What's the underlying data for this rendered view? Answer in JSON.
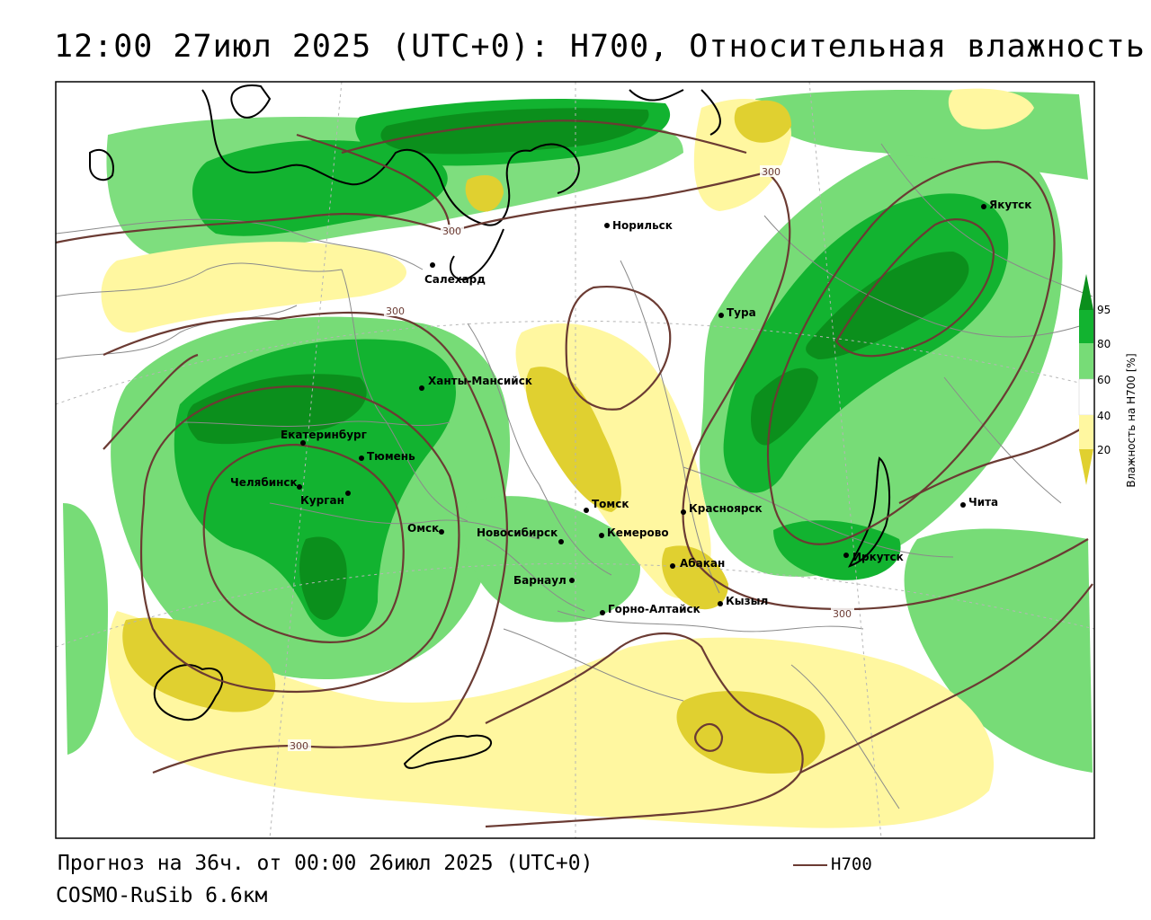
{
  "header": {
    "title": "12:00 27июл 2025 (UTC+0): H700, Относительная влажность"
  },
  "footer": {
    "forecast": "Прогноз на 36ч. от 00:00 26июл 2025 (UTC+0)",
    "model": "COSMO-RuSib 6.6км",
    "legend_line_label": "H700"
  },
  "colorbar": {
    "title": "Влажность на H700 [%]",
    "ticks": [
      "95",
      "80",
      "60",
      "40",
      "20"
    ],
    "colors": {
      "above_95": "#0b8f1c",
      "c80_95": "#12b330",
      "c60_80": "#77dc77",
      "c40_60": "#ffffff",
      "c20_40": "#fff7a0",
      "below_20": "#e0d030"
    }
  },
  "contours": {
    "label": "300",
    "color": "#6b3b33"
  },
  "cities": [
    {
      "name": "Норильск",
      "lon": 88.2,
      "lat": 69.3
    },
    {
      "name": "Якутск",
      "lon": 129.7,
      "lat": 62.0
    },
    {
      "name": "Салехард",
      "lon": 66.6,
      "lat": 66.5
    },
    {
      "name": "Тура",
      "lon": 100.2,
      "lat": 64.3
    },
    {
      "name": "Ханты-Мансийск",
      "lon": 69.0,
      "lat": 61.0
    },
    {
      "name": "Екатеринбург",
      "lon": 60.6,
      "lat": 56.8
    },
    {
      "name": "Тюмень",
      "lon": 65.5,
      "lat": 57.2
    },
    {
      "name": "Челябинск",
      "lon": 61.4,
      "lat": 55.2
    },
    {
      "name": "Курган",
      "lon": 65.3,
      "lat": 55.4
    },
    {
      "name": "Омск",
      "lon": 73.4,
      "lat": 55.0
    },
    {
      "name": "Новосибирск",
      "lon": 82.9,
      "lat": 55.0
    },
    {
      "name": "Томск",
      "lon": 85.0,
      "lat": 56.5
    },
    {
      "name": "Красноярск",
      "lon": 92.9,
      "lat": 56.0
    },
    {
      "name": "Кемерово",
      "lon": 86.1,
      "lat": 55.4
    },
    {
      "name": "Барнаул",
      "lon": 83.8,
      "lat": 53.3
    },
    {
      "name": "Абакан",
      "lon": 91.4,
      "lat": 53.7
    },
    {
      "name": "Иркутск",
      "lon": 104.3,
      "lat": 52.3
    },
    {
      "name": "Чита",
      "lon": 113.5,
      "lat": 52.0
    },
    {
      "name": "Горно-Алтайск",
      "lon": 85.9,
      "lat": 51.9
    },
    {
      "name": "Кызыл",
      "lon": 94.4,
      "lat": 51.7
    }
  ]
}
